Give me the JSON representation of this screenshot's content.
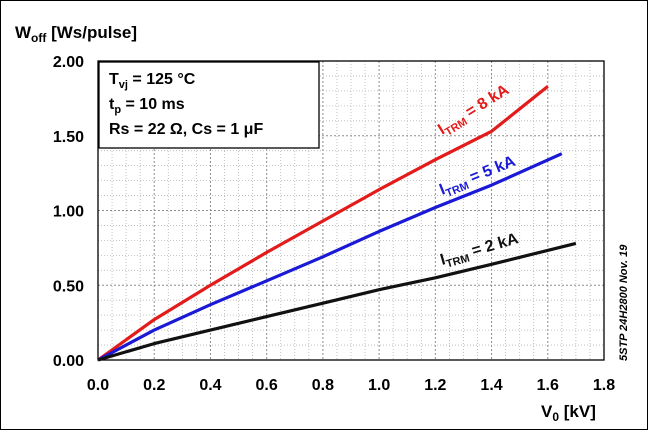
{
  "chart_data": {
    "type": "line",
    "ylabel_main": "W",
    "ylabel_sub": "off",
    "ylabel_rest": " [Ws/pulse]",
    "xlabel_main": "V",
    "xlabel_sub": "0",
    "xlabel_rest": " [kV]",
    "xlim": [
      0.0,
      1.8
    ],
    "ylim": [
      0.0,
      2.0
    ],
    "x_ticks": [
      0.0,
      0.2,
      0.4,
      0.6,
      0.8,
      1.0,
      1.2,
      1.4,
      1.6,
      1.8
    ],
    "y_ticks": [
      0.0,
      0.5,
      1.0,
      1.5,
      2.0
    ],
    "x_tick_labels": [
      "0.0",
      "0.2",
      "0.4",
      "0.6",
      "0.8",
      "1.0",
      "1.2",
      "1.4",
      "1.6",
      "1.8"
    ],
    "y_tick_labels": [
      "0.00",
      "0.50",
      "1.00",
      "1.50",
      "2.00"
    ],
    "grid": true,
    "conditions": [
      {
        "main": "T",
        "sub": "vj",
        "rest": " = 125 °C"
      },
      {
        "main": "t",
        "sub": "p",
        "rest": " = 10 ms"
      },
      {
        "main": "Rs = 22 Ω, Cs = 1 μF",
        "sub": "",
        "rest": ""
      }
    ],
    "side_note": "5STP 24H2800 Nov. 19",
    "series": [
      {
        "name_main": "I",
        "name_sub": "TRM",
        "name_rest": " = 8 kA",
        "color": "#e31b1b",
        "x": [
          0.0,
          0.2,
          0.4,
          0.6,
          0.8,
          1.0,
          1.2,
          1.4,
          1.6
        ],
        "y": [
          0.0,
          0.27,
          0.5,
          0.72,
          0.93,
          1.14,
          1.34,
          1.53,
          1.83
        ]
      },
      {
        "name_main": "I",
        "name_sub": "TRM",
        "name_rest": " = 5 kA",
        "color": "#1a1ad6",
        "x": [
          0.0,
          0.2,
          0.4,
          0.6,
          0.8,
          1.0,
          1.2,
          1.4,
          1.65
        ],
        "y": [
          0.0,
          0.2,
          0.37,
          0.53,
          0.69,
          0.86,
          1.02,
          1.17,
          1.38
        ]
      },
      {
        "name_main": "I",
        "name_sub": "TRM",
        "name_rest": " = 2 kA",
        "color": "#111111",
        "x": [
          0.0,
          0.2,
          0.4,
          0.6,
          0.8,
          1.0,
          1.2,
          1.4,
          1.7
        ],
        "y": [
          0.0,
          0.11,
          0.2,
          0.29,
          0.38,
          0.47,
          0.55,
          0.64,
          0.78
        ]
      }
    ]
  }
}
